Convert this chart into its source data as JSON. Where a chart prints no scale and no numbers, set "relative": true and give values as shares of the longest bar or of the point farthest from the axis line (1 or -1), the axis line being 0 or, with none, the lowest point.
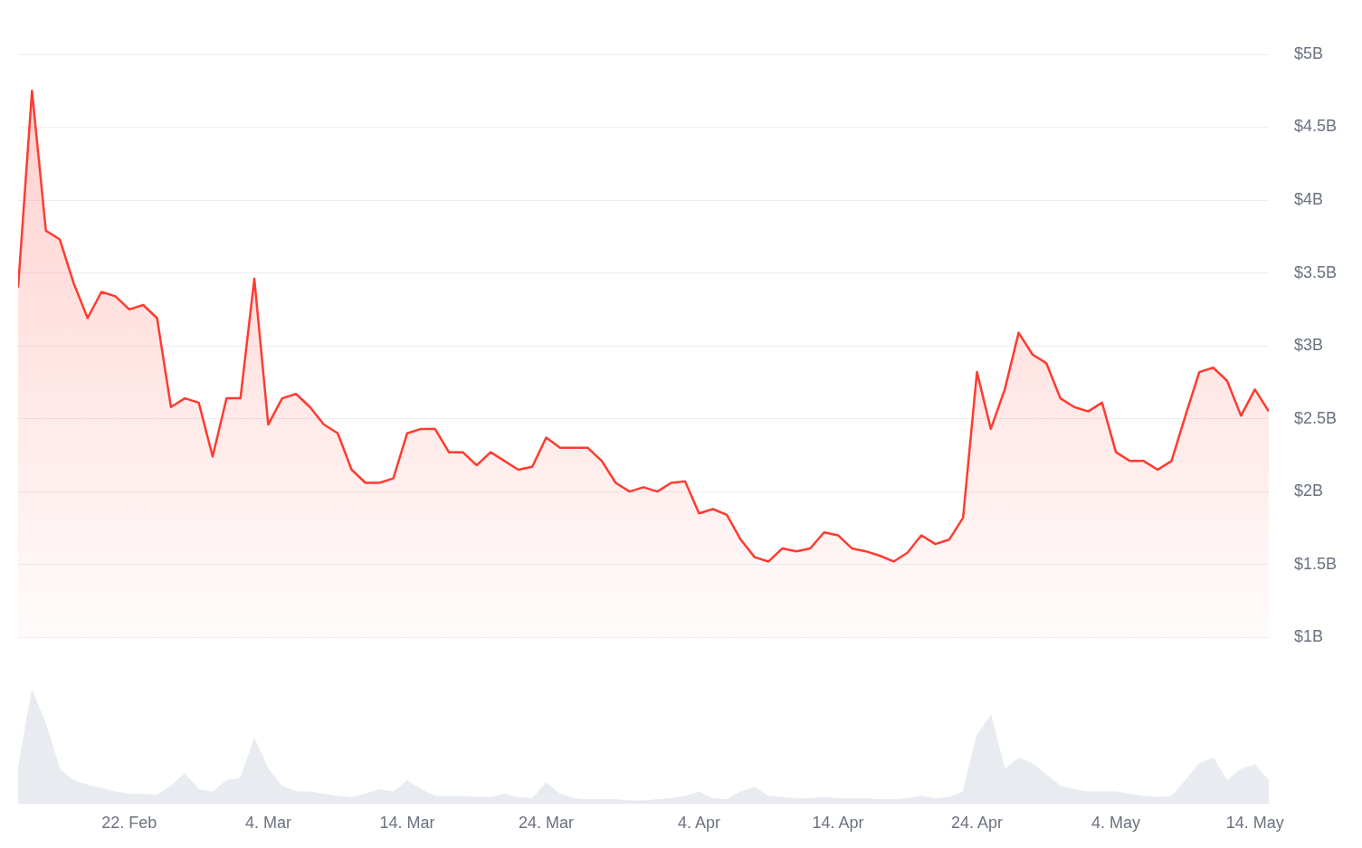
{
  "chart_data": [
    {
      "type": "area",
      "color": "#ff3b30",
      "xlim": [
        "--02-14",
        "--05-15"
      ],
      "ylim": [
        1,
        5
      ],
      "tick_labels": "y",
      "grid": "y",
      "yticks": [
        {
          "value": 1,
          "label": "$1B"
        },
        {
          "value": 1.5,
          "label": "$1.5B"
        },
        {
          "value": 2,
          "label": "$2B"
        },
        {
          "value": 2.5,
          "label": "$2.5B"
        },
        {
          "value": 3,
          "label": "$3B"
        },
        {
          "value": 3.5,
          "label": "$3.5B"
        },
        {
          "value": 4,
          "label": "$4B"
        },
        {
          "value": 4.5,
          "label": "$4.5B"
        },
        {
          "value": 5,
          "label": "$5B"
        }
      ],
      "x": [
        "--02-14",
        "--02-15",
        "--02-16",
        "--02-17",
        "--02-18",
        "--02-19",
        "--02-20",
        "--02-21",
        "--02-22",
        "--02-23",
        "--02-24",
        "--02-25",
        "--02-26",
        "--02-27",
        "--02-28",
        "--03-01",
        "--03-02",
        "--03-03",
        "--03-04",
        "--03-05",
        "--03-06",
        "--03-07",
        "--03-08",
        "--03-09",
        "--03-10",
        "--03-11",
        "--03-12",
        "--03-13",
        "--03-14",
        "--03-15",
        "--03-16",
        "--03-17",
        "--03-18",
        "--03-19",
        "--03-20",
        "--03-21",
        "--03-22",
        "--03-23",
        "--03-24",
        "--03-25",
        "--03-26",
        "--03-27",
        "--03-28",
        "--03-29",
        "--03-30",
        "--03-31",
        "--04-01",
        "--04-02",
        "--04-03",
        "--04-04",
        "--04-05",
        "--04-06",
        "--04-07",
        "--04-08",
        "--04-09",
        "--04-10",
        "--04-11",
        "--04-12",
        "--04-13",
        "--04-14",
        "--04-15",
        "--04-16",
        "--04-17",
        "--04-18",
        "--04-19",
        "--04-20",
        "--04-21",
        "--04-22",
        "--04-23",
        "--04-24",
        "--04-25",
        "--04-26",
        "--04-27",
        "--04-28",
        "--04-29",
        "--04-30",
        "--05-01",
        "--05-02",
        "--05-03",
        "--05-04",
        "--05-05",
        "--05-06",
        "--05-07",
        "--05-08",
        "--05-09",
        "--05-10",
        "--05-11",
        "--05-12",
        "--05-13",
        "--05-14",
        "--05-15"
      ],
      "values": [
        3.4,
        4.75,
        3.79,
        3.73,
        3.43,
        3.19,
        3.37,
        3.34,
        3.25,
        3.28,
        3.19,
        2.58,
        2.64,
        2.61,
        2.24,
        2.64,
        2.64,
        3.46,
        2.46,
        2.64,
        2.67,
        2.58,
        2.46,
        2.4,
        2.15,
        2.06,
        2.06,
        2.09,
        2.4,
        2.43,
        2.43,
        2.27,
        2.27,
        2.18,
        2.27,
        2.21,
        2.15,
        2.17,
        2.37,
        2.3,
        2.3,
        2.3,
        2.21,
        2.06,
        2.0,
        2.03,
        2.0,
        2.06,
        2.07,
        1.85,
        1.88,
        1.84,
        1.67,
        1.55,
        1.52,
        1.61,
        1.59,
        1.61,
        1.72,
        1.7,
        1.61,
        1.59,
        1.56,
        1.52,
        1.58,
        1.7,
        1.64,
        1.67,
        1.82,
        2.82,
        2.43,
        2.7,
        3.09,
        2.94,
        2.88,
        2.64,
        2.58,
        2.55,
        2.61,
        2.27,
        2.21,
        2.21,
        2.15,
        2.21,
        2.52,
        2.82,
        2.85,
        2.76,
        2.52,
        2.7,
        2.55
      ]
    },
    {
      "type": "area",
      "relative": true,
      "color": "#e8ebef",
      "xlim": [
        "--02-14",
        "--05-15"
      ],
      "tick_labels": "x",
      "xticks": [
        {
          "value": "--02-22",
          "label": "22. Feb"
        },
        {
          "value": "--03-04",
          "label": "4. Mar"
        },
        {
          "value": "--03-14",
          "label": "14. Mar"
        },
        {
          "value": "--03-24",
          "label": "24. Mar"
        },
        {
          "value": "--04-04",
          "label": "4. Apr"
        },
        {
          "value": "--04-14",
          "label": "14. Apr"
        },
        {
          "value": "--04-24",
          "label": "24. Apr"
        },
        {
          "value": "--05-04",
          "label": "4. May"
        },
        {
          "value": "--05-14",
          "label": "14. May"
        }
      ],
      "x": [
        "--02-14",
        "--02-15",
        "--02-16",
        "--02-17",
        "--02-18",
        "--02-19",
        "--02-20",
        "--02-21",
        "--02-22",
        "--02-23",
        "--02-24",
        "--02-25",
        "--02-26",
        "--02-27",
        "--02-28",
        "--03-01",
        "--03-02",
        "--03-03",
        "--03-04",
        "--03-05",
        "--03-06",
        "--03-07",
        "--03-08",
        "--03-09",
        "--03-10",
        "--03-11",
        "--03-12",
        "--03-13",
        "--03-14",
        "--03-15",
        "--03-16",
        "--03-17",
        "--03-18",
        "--03-19",
        "--03-20",
        "--03-21",
        "--03-22",
        "--03-23",
        "--03-24",
        "--03-25",
        "--03-26",
        "--03-27",
        "--03-28",
        "--03-29",
        "--03-30",
        "--03-31",
        "--04-01",
        "--04-02",
        "--04-03",
        "--04-04",
        "--04-05",
        "--04-06",
        "--04-07",
        "--04-08",
        "--04-09",
        "--04-10",
        "--04-11",
        "--04-12",
        "--04-13",
        "--04-14",
        "--04-15",
        "--04-16",
        "--04-17",
        "--04-18",
        "--04-19",
        "--04-20",
        "--04-21",
        "--04-22",
        "--04-23",
        "--04-24",
        "--04-25",
        "--04-26",
        "--04-27",
        "--04-28",
        "--04-29",
        "--04-30",
        "--05-01",
        "--05-02",
        "--05-03",
        "--05-04",
        "--05-05",
        "--05-06",
        "--05-07",
        "--05-08",
        "--05-09",
        "--05-10",
        "--05-11",
        "--05-12",
        "--05-13",
        "--05-14",
        "--05-15"
      ],
      "values": [
        0.3,
        1.0,
        0.7,
        0.3,
        0.2,
        0.16,
        0.13,
        0.1,
        0.08,
        0.08,
        0.07,
        0.15,
        0.26,
        0.12,
        0.1,
        0.2,
        0.22,
        0.57,
        0.3,
        0.15,
        0.1,
        0.1,
        0.08,
        0.06,
        0.05,
        0.08,
        0.12,
        0.1,
        0.2,
        0.12,
        0.06,
        0.06,
        0.06,
        0.05,
        0.05,
        0.08,
        0.05,
        0.04,
        0.18,
        0.08,
        0.04,
        0.03,
        0.03,
        0.03,
        0.02,
        0.02,
        0.03,
        0.04,
        0.06,
        0.1,
        0.04,
        0.03,
        0.1,
        0.14,
        0.06,
        0.05,
        0.04,
        0.04,
        0.05,
        0.04,
        0.04,
        0.04,
        0.03,
        0.03,
        0.04,
        0.06,
        0.04,
        0.05,
        0.1,
        0.6,
        0.78,
        0.3,
        0.4,
        0.35,
        0.25,
        0.15,
        0.12,
        0.1,
        0.1,
        0.1,
        0.08,
        0.06,
        0.05,
        0.06,
        0.2,
        0.35,
        0.4,
        0.2,
        0.3,
        0.34,
        0.2
      ]
    }
  ]
}
